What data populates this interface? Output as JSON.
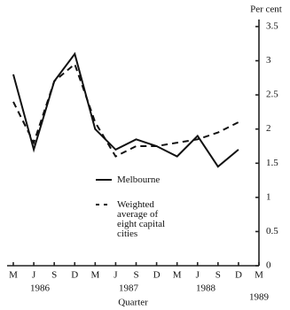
{
  "chart_data": {
    "type": "line",
    "y_axis_label": "Per cent",
    "x_axis_label": "Quarter",
    "categories": [
      "M",
      "J",
      "S",
      "D",
      "M",
      "J",
      "S",
      "D",
      "M",
      "J",
      "S",
      "D",
      "M"
    ],
    "year_labels": [
      "1986",
      "1987",
      "1988",
      "1989"
    ],
    "series": [
      {
        "name": "Melbourne",
        "color": "#111111",
        "style": "solid",
        "values": [
          2.8,
          1.7,
          2.7,
          3.1,
          2.0,
          1.7,
          1.85,
          1.75,
          1.6,
          1.9,
          1.45,
          1.7,
          null
        ]
      },
      {
        "name": "Weighted average of eight capital cities",
        "color": "#111111",
        "style": "dashed",
        "values": [
          2.4,
          1.8,
          2.7,
          2.95,
          2.1,
          1.6,
          1.75,
          1.75,
          1.8,
          1.85,
          1.95,
          2.1,
          null
        ]
      }
    ],
    "ylim": [
      0,
      3.5
    ],
    "yticks": [
      0,
      0.5,
      1,
      1.5,
      2,
      2.5,
      3,
      3.5
    ],
    "y_axis_side": "right",
    "grid": false
  }
}
